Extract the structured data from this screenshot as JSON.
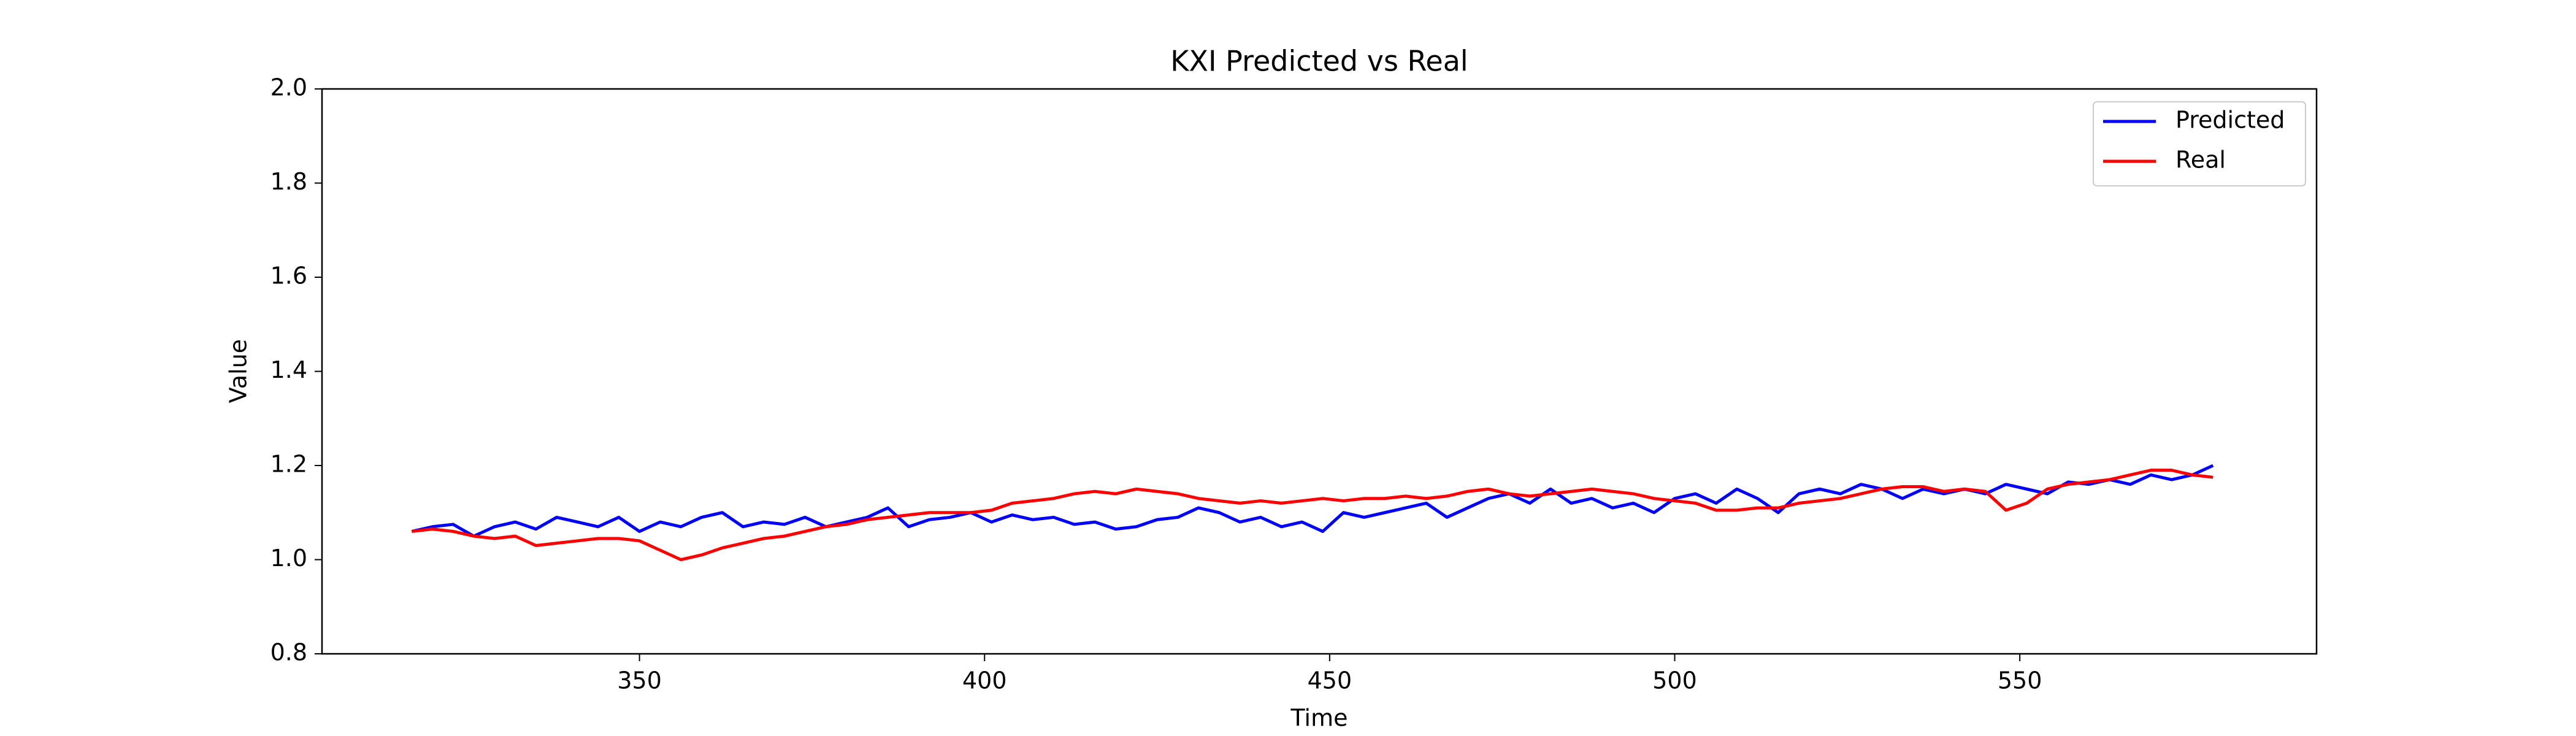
{
  "chart_data": {
    "type": "line",
    "title": "KXI Predicted vs Real",
    "xlabel": "Time",
    "ylabel": "Value",
    "x": [
      317,
      320,
      323,
      326,
      329,
      332,
      335,
      338,
      341,
      344,
      347,
      350,
      353,
      356,
      359,
      362,
      365,
      368,
      371,
      374,
      377,
      380,
      383,
      386,
      389,
      392,
      395,
      398,
      401,
      404,
      407,
      410,
      413,
      416,
      419,
      422,
      425,
      428,
      431,
      434,
      437,
      440,
      443,
      446,
      449,
      452,
      455,
      458,
      461,
      464,
      467,
      470,
      473,
      476,
      479,
      482,
      485,
      488,
      491,
      494,
      497,
      500,
      503,
      506,
      509,
      512,
      515,
      518,
      521,
      524,
      527,
      530,
      533,
      536,
      539,
      542,
      545,
      548,
      551,
      554,
      557,
      560,
      563,
      566,
      569,
      572,
      575,
      578
    ],
    "series": [
      {
        "name": "Predicted",
        "color": "#0000ff",
        "values": [
          1.06,
          1.07,
          1.075,
          1.05,
          1.07,
          1.08,
          1.065,
          1.09,
          1.08,
          1.07,
          1.09,
          1.06,
          1.08,
          1.07,
          1.09,
          1.1,
          1.07,
          1.08,
          1.075,
          1.09,
          1.07,
          1.08,
          1.09,
          1.11,
          1.07,
          1.085,
          1.09,
          1.1,
          1.08,
          1.095,
          1.085,
          1.09,
          1.075,
          1.08,
          1.065,
          1.07,
          1.085,
          1.09,
          1.11,
          1.1,
          1.08,
          1.09,
          1.07,
          1.08,
          1.06,
          1.1,
          1.09,
          1.1,
          1.11,
          1.12,
          1.09,
          1.11,
          1.13,
          1.14,
          1.12,
          1.15,
          1.12,
          1.13,
          1.11,
          1.12,
          1.1,
          1.13,
          1.14,
          1.12,
          1.15,
          1.13,
          1.1,
          1.14,
          1.15,
          1.14,
          1.16,
          1.15,
          1.13,
          1.15,
          1.14,
          1.15,
          1.14,
          1.16,
          1.15,
          1.14,
          1.165,
          1.16,
          1.17,
          1.16,
          1.18,
          1.17,
          1.18,
          1.2
        ]
      },
      {
        "name": "Real",
        "color": "#ff0000",
        "values": [
          1.06,
          1.065,
          1.06,
          1.05,
          1.045,
          1.05,
          1.03,
          1.035,
          1.04,
          1.045,
          1.045,
          1.04,
          1.02,
          1.0,
          1.01,
          1.025,
          1.035,
          1.045,
          1.05,
          1.06,
          1.07,
          1.075,
          1.085,
          1.09,
          1.095,
          1.1,
          1.1,
          1.1,
          1.105,
          1.12,
          1.125,
          1.13,
          1.14,
          1.145,
          1.14,
          1.15,
          1.145,
          1.14,
          1.13,
          1.125,
          1.12,
          1.125,
          1.12,
          1.125,
          1.13,
          1.125,
          1.13,
          1.13,
          1.135,
          1.13,
          1.135,
          1.145,
          1.15,
          1.14,
          1.135,
          1.14,
          1.145,
          1.15,
          1.145,
          1.14,
          1.13,
          1.125,
          1.12,
          1.105,
          1.105,
          1.11,
          1.11,
          1.12,
          1.125,
          1.13,
          1.14,
          1.15,
          1.155,
          1.155,
          1.145,
          1.15,
          1.145,
          1.105,
          1.12,
          1.15,
          1.16,
          1.165,
          1.17,
          1.18,
          1.19,
          1.19,
          1.18,
          1.175
        ]
      }
    ],
    "xlim": [
      304,
      593
    ],
    "xticks": [
      350,
      400,
      450,
      500,
      550
    ],
    "ylim": [
      0.8,
      2.0
    ],
    "yticks": [
      0.8,
      {
        "value": 1,
        "label": "1.0"
      },
      1.2,
      1.4,
      1.6,
      1.8,
      {
        "value": 2,
        "label": "2.0"
      }
    ],
    "grid": false,
    "legend": "upper right"
  }
}
